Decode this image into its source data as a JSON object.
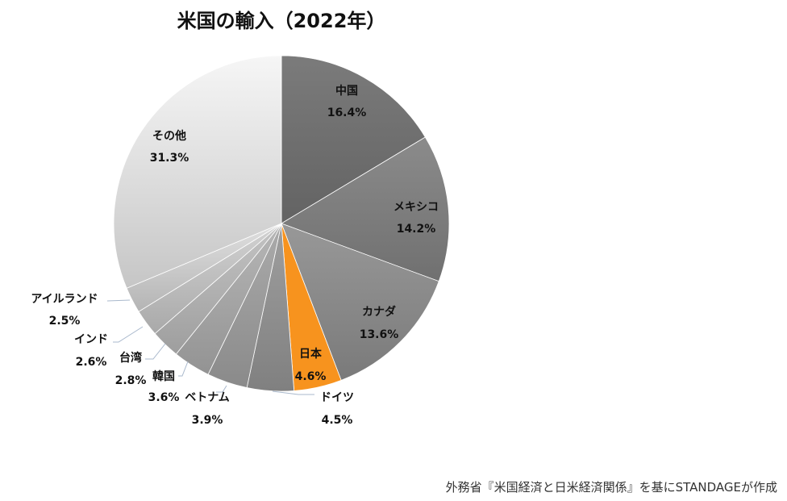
{
  "chart_data": {
    "type": "pie",
    "title": "米国の輸入（2022年）",
    "start_angle": "top",
    "direction": "clockwise",
    "slices": [
      {
        "label": "中国",
        "value": 16.4,
        "value_label": "16.4%",
        "color": "#6e6e6e"
      },
      {
        "label": "メキシコ",
        "value": 14.2,
        "value_label": "14.2%",
        "color": "#7c7c7c"
      },
      {
        "label": "カナダ",
        "value": 13.6,
        "value_label": "13.6%",
        "color": "#888888"
      },
      {
        "label": "日本",
        "value": 4.6,
        "value_label": "4.6%",
        "color": "#f7931e"
      },
      {
        "label": "ドイツ",
        "value": 4.5,
        "value_label": "4.5%",
        "color": "#8e8e8e"
      },
      {
        "label": "ベトナム",
        "value": 3.9,
        "value_label": "3.9%",
        "color": "#999999"
      },
      {
        "label": "韓国",
        "value": 3.6,
        "value_label": "3.6%",
        "color": "#a3a3a3"
      },
      {
        "label": "台湾",
        "value": 2.8,
        "value_label": "2.8%",
        "color": "#afafaf"
      },
      {
        "label": "インド",
        "value": 2.6,
        "value_label": "2.6%",
        "color": "#bcbcbc"
      },
      {
        "label": "アイルランド",
        "value": 2.5,
        "value_label": "2.5%",
        "color": "#c8c8c8"
      },
      {
        "label": "その他",
        "value": 31.3,
        "value_label": "31.3%",
        "color": "#dcdcdc"
      }
    ]
  },
  "source": "外務省『米国経済と日米経済関係』を基にSTANDAGEが作成"
}
